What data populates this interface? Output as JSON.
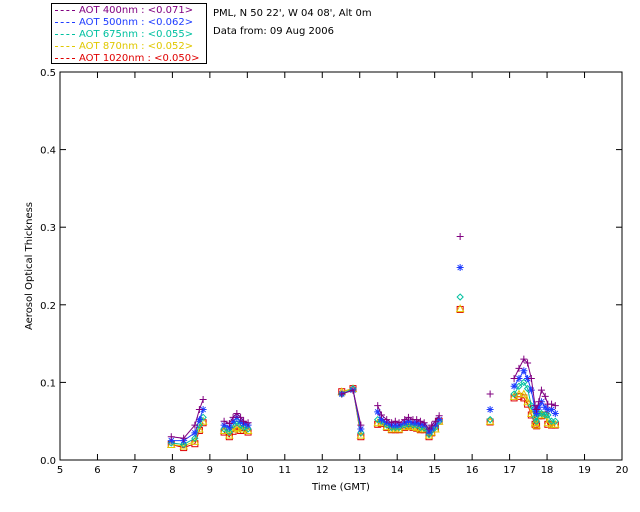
{
  "legend": {
    "items": [
      {
        "label": "AOT  400nm : <0.071>",
        "color": "#800080"
      },
      {
        "label": "AOT  500nm : <0.062>",
        "color": "#1e3cff"
      },
      {
        "label": "AOT  675nm : <0.055>",
        "color": "#00c0a0"
      },
      {
        "label": "AOT  870nm : <0.052>",
        "color": "#e0c800"
      },
      {
        "label": "AOT 1020nm : <0.050>",
        "color": "#e00000"
      }
    ]
  },
  "info": {
    "site": "PML, N 50 22', W 04 08', Alt 0m",
    "date": "Data from: 09 Aug 2006"
  },
  "chart_data": {
    "type": "line",
    "xlabel": "Time (GMT)",
    "ylabel": "Aerosol Optical Thickness",
    "xlim": [
      5,
      20
    ],
    "ylim": [
      0,
      0.5
    ],
    "xticks": [
      5,
      6,
      7,
      8,
      9,
      10,
      11,
      12,
      13,
      14,
      15,
      16,
      17,
      18,
      19,
      20
    ],
    "yticks": [
      0.0,
      0.1,
      0.2,
      0.3,
      0.4,
      0.5
    ],
    "ytick_labels": [
      "0.0",
      "0.1",
      "0.2",
      "0.3",
      "0.4",
      "0.5"
    ],
    "markers": {
      "400nm": "plus",
      "500nm": "asterisk",
      "675nm": "diamond",
      "870nm": "triangle",
      "1020nm": "square"
    },
    "x": [
      7.97,
      8.3,
      8.6,
      8.72,
      8.82,
      9.38,
      9.52,
      9.62,
      9.72,
      9.82,
      9.9,
      10.02,
      12.52,
      12.82,
      13.03,
      13.48,
      13.58,
      13.72,
      13.85,
      13.95,
      14.05,
      14.2,
      14.3,
      14.42,
      14.52,
      14.62,
      14.72,
      14.85,
      14.92,
      15.02,
      15.12,
      15.68,
      16.48,
      17.12,
      17.25,
      17.38,
      17.48,
      17.58,
      17.68,
      17.72,
      17.78,
      17.85,
      17.95,
      18.02,
      18.12,
      18.22
    ],
    "series": [
      {
        "name": "AOT  400nm : <0.071>",
        "values": [
          0.03,
          0.028,
          0.045,
          0.065,
          0.078,
          0.05,
          0.047,
          0.055,
          0.06,
          0.055,
          0.05,
          0.048,
          0.085,
          0.09,
          0.045,
          0.07,
          0.058,
          0.052,
          0.048,
          0.05,
          0.048,
          0.052,
          0.055,
          0.052,
          0.052,
          0.05,
          0.048,
          0.04,
          0.045,
          0.05,
          0.057,
          0.288,
          0.085,
          0.105,
          0.118,
          0.13,
          0.125,
          0.105,
          0.07,
          0.065,
          0.075,
          0.09,
          0.082,
          0.072,
          0.072,
          0.07
        ]
      },
      {
        "name": "AOT  500nm : <0.062>",
        "values": [
          0.025,
          0.025,
          0.035,
          0.052,
          0.065,
          0.045,
          0.042,
          0.05,
          0.055,
          0.05,
          0.047,
          0.045,
          0.085,
          0.09,
          0.04,
          0.062,
          0.052,
          0.048,
          0.045,
          0.045,
          0.045,
          0.048,
          0.05,
          0.048,
          0.048,
          0.046,
          0.045,
          0.036,
          0.04,
          0.045,
          0.052,
          0.248,
          0.065,
          0.095,
          0.105,
          0.115,
          0.105,
          0.09,
          0.065,
          0.06,
          0.068,
          0.075,
          0.068,
          0.065,
          0.065,
          0.06
        ]
      },
      {
        "name": "AOT  675nm : <0.055>",
        "values": [
          0.022,
          0.02,
          0.028,
          0.045,
          0.055,
          0.04,
          0.036,
          0.045,
          0.05,
          0.045,
          0.042,
          0.04,
          0.085,
          0.092,
          0.035,
          0.052,
          0.05,
          0.045,
          0.042,
          0.042,
          0.042,
          0.045,
          0.046,
          0.045,
          0.045,
          0.042,
          0.041,
          0.033,
          0.038,
          0.042,
          0.05,
          0.21,
          0.052,
          0.085,
          0.095,
          0.1,
          0.092,
          0.07,
          0.055,
          0.05,
          0.06,
          0.06,
          0.058,
          0.058,
          0.05,
          0.05
        ]
      },
      {
        "name": "AOT  870nm : <0.052>",
        "values": [
          0.02,
          0.018,
          0.024,
          0.04,
          0.05,
          0.038,
          0.032,
          0.04,
          0.042,
          0.04,
          0.04,
          0.038,
          0.088,
          0.092,
          0.032,
          0.048,
          0.048,
          0.043,
          0.04,
          0.04,
          0.04,
          0.043,
          0.045,
          0.043,
          0.042,
          0.04,
          0.04,
          0.032,
          0.036,
          0.04,
          0.05,
          0.195,
          0.05,
          0.082,
          0.085,
          0.085,
          0.075,
          0.06,
          0.048,
          0.045,
          0.058,
          0.058,
          0.058,
          0.048,
          0.046,
          0.046
        ]
      },
      {
        "name": "AOT 1020nm : <0.050>",
        "values": [
          0.02,
          0.016,
          0.021,
          0.038,
          0.048,
          0.036,
          0.03,
          0.037,
          0.04,
          0.038,
          0.038,
          0.036,
          0.088,
          0.092,
          0.03,
          0.046,
          0.047,
          0.042,
          0.039,
          0.039,
          0.039,
          0.042,
          0.044,
          0.042,
          0.041,
          0.039,
          0.039,
          0.03,
          0.035,
          0.04,
          0.05,
          0.194,
          0.049,
          0.08,
          0.082,
          0.08,
          0.072,
          0.058,
          0.046,
          0.044,
          0.057,
          0.057,
          0.058,
          0.046,
          0.045,
          0.045
        ]
      }
    ]
  }
}
